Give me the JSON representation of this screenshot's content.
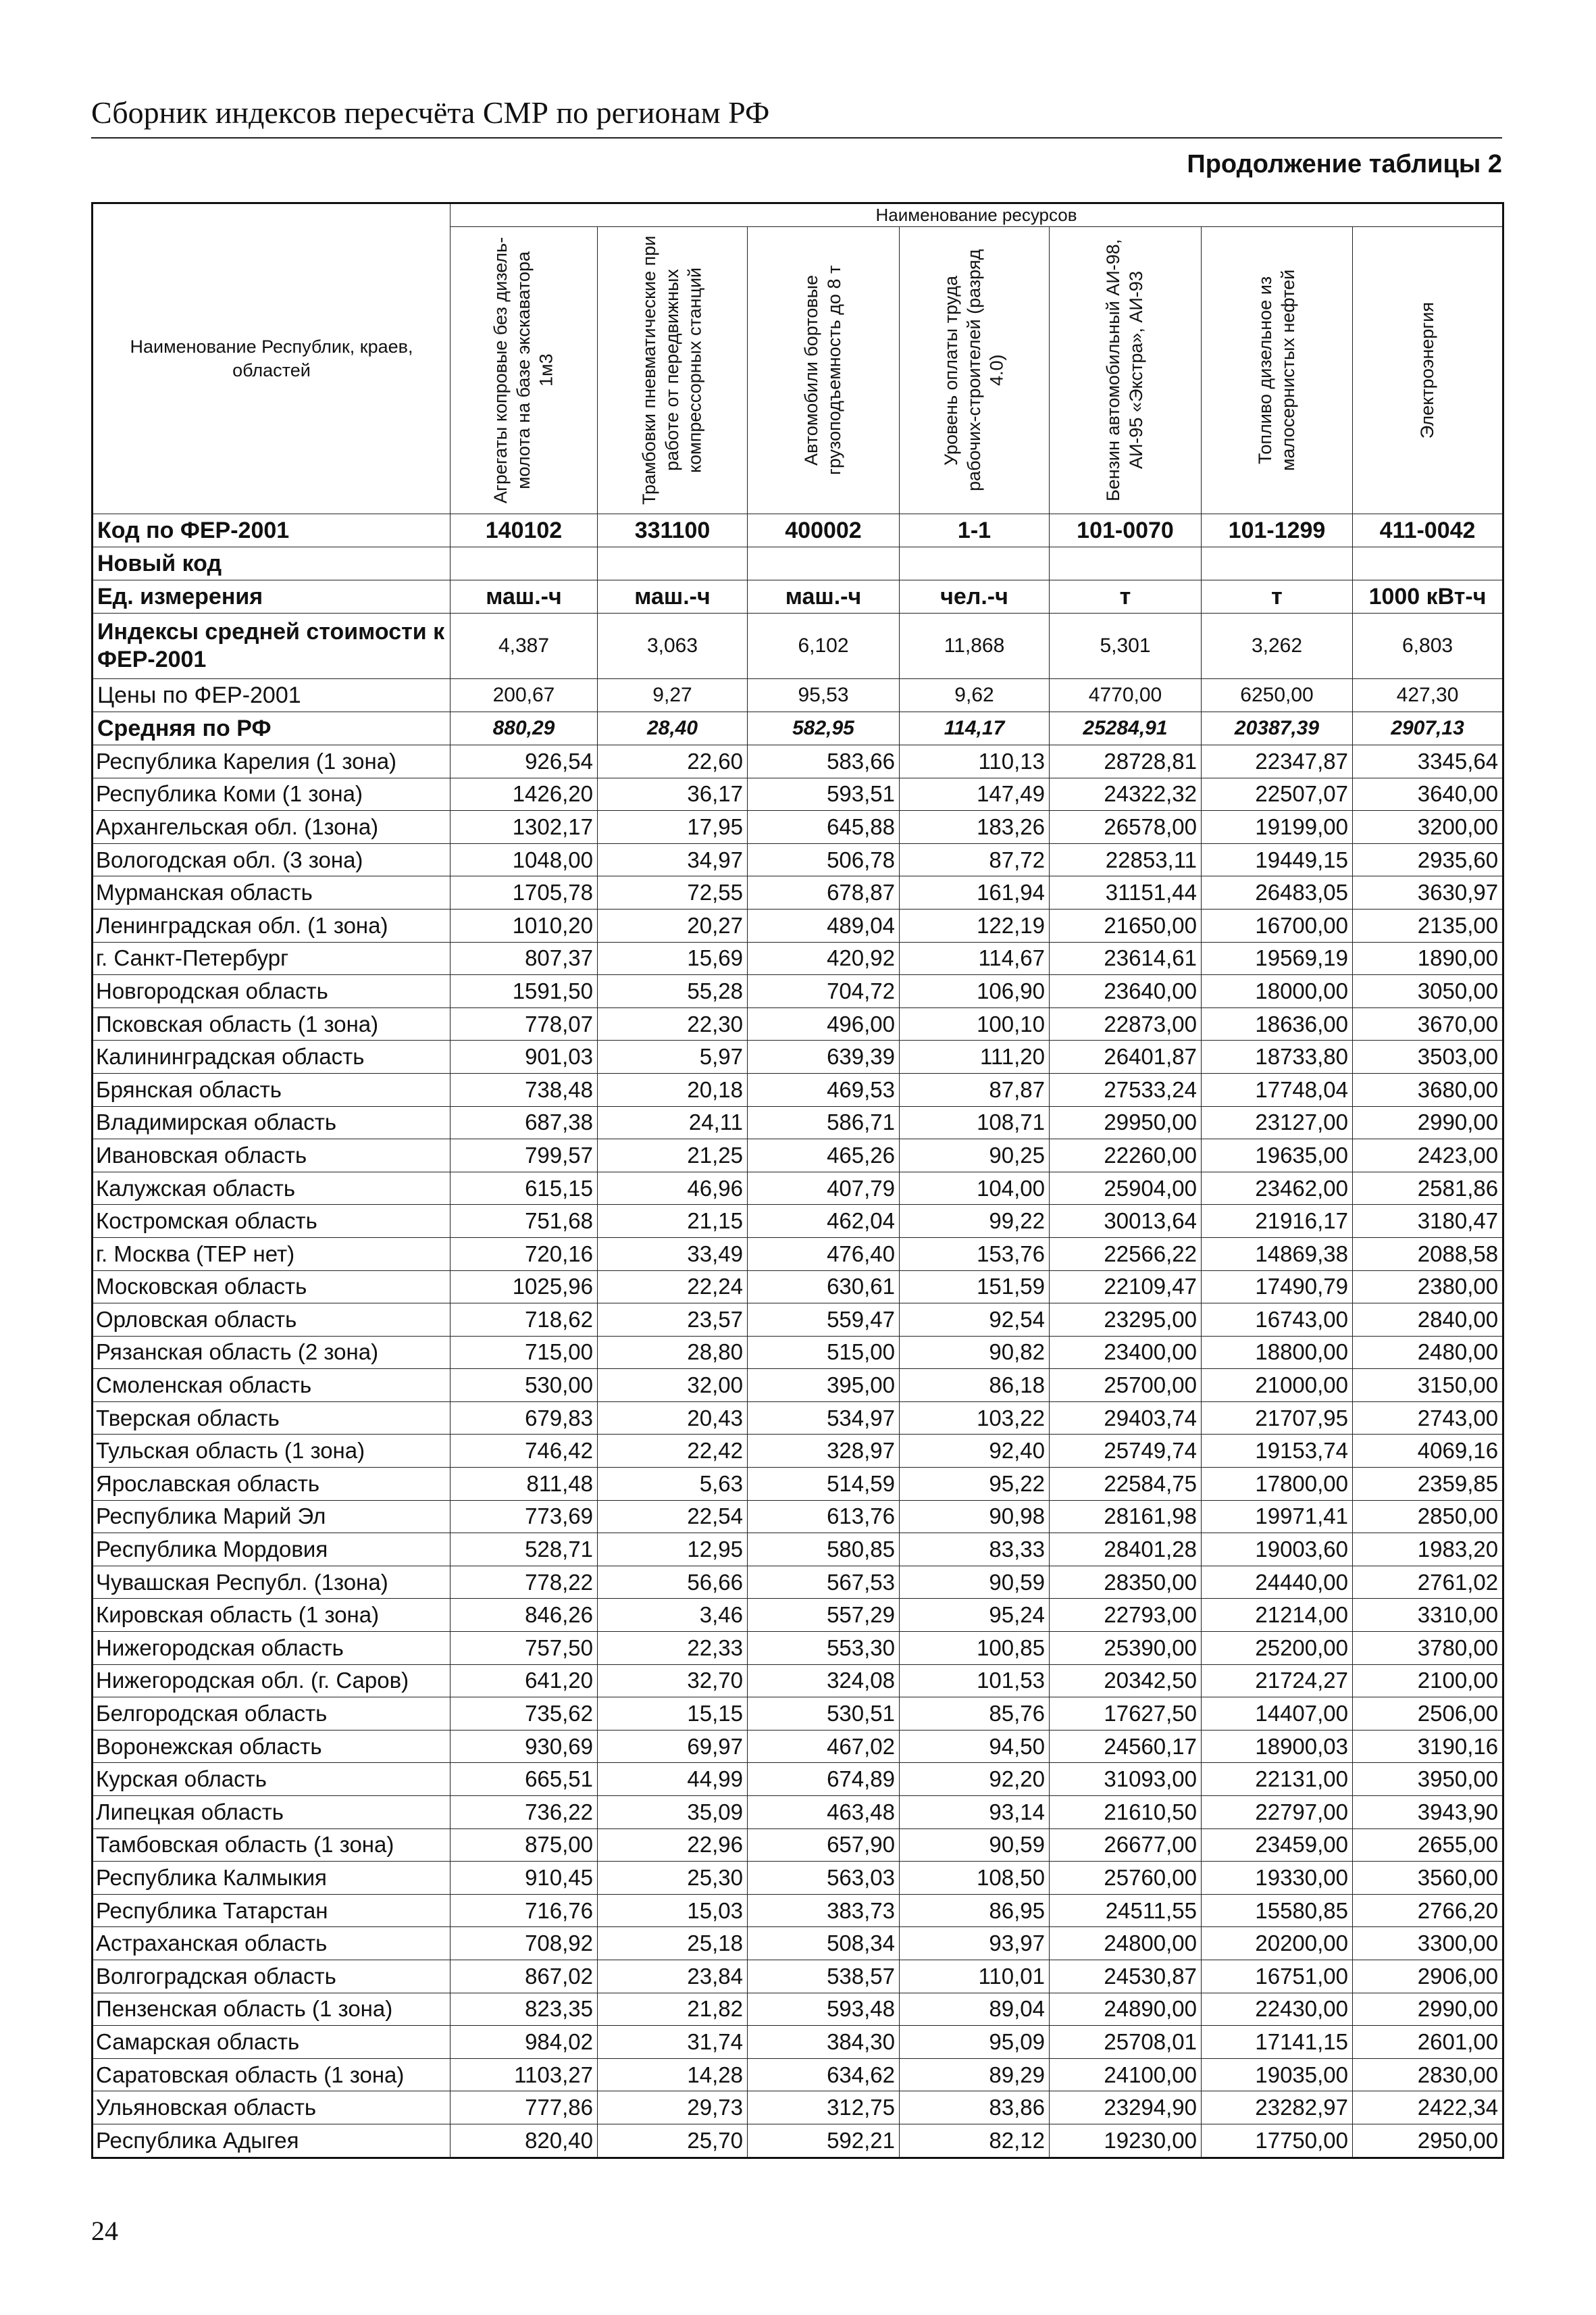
{
  "header": {
    "title": "Сборник индексов пересчёта СМР  по регионам РФ",
    "subtitle": "Продолжение таблицы 2"
  },
  "table": {
    "name_header": "Наименование Республик, краев, областей",
    "group_header": "Наименование ресурсов",
    "columns": [
      "Агрегаты копровые без дизель-молота на базе экскаватора 1м3",
      "Трамбовки пневматические при работе от передвижных компрессорных станций",
      "Автомобили бортовые грузоподъемность до 8 т",
      "Уровень оплаты труда рабочих-строителей (разряд 4.0)",
      "Бензин автомобильный АИ-98, АИ-95 «Экстра», АИ-93",
      "Топливо дизельное из малосернистых нефтей",
      "Электроэнергия"
    ],
    "special_rows": [
      {
        "label": "Код по ФЕР-2001",
        "cells": [
          "140102",
          "331100",
          "400002",
          "1-1",
          "101-0070",
          "101-1299",
          "411-0042"
        ]
      },
      {
        "label": "Новый код"
      },
      {
        "label": "Ед. измерения",
        "cells": [
          "маш.-ч",
          "маш.-ч",
          "маш.-ч",
          "чел.-ч",
          "т",
          "т",
          "1000 кВт-ч"
        ]
      },
      {
        "label": "Индексы средней стоимости к ФЕР-2001",
        "cells": [
          "4,387",
          "3,063",
          "6,102",
          "11,868",
          "5,301",
          "3,262",
          "6,803"
        ]
      },
      {
        "label": "Цены по ФЕР-2001",
        "cells": [
          "200,67",
          "9,27",
          "95,53",
          "9,62",
          "4770,00",
          "6250,00",
          "427,30"
        ]
      },
      {
        "label": "Средняя по РФ",
        "cells": [
          "880,29",
          "28,40",
          "582,95",
          "114,17",
          "25284,91",
          "20387,39",
          "2907,13"
        ]
      }
    ],
    "rows": [
      [
        "Республика Карелия (1 зона)",
        "926,54",
        "22,60",
        "583,66",
        "110,13",
        "28728,81",
        "22347,87",
        "3345,64"
      ],
      [
        "Республика Коми (1 зона)",
        "1426,20",
        "36,17",
        "593,51",
        "147,49",
        "24322,32",
        "22507,07",
        "3640,00"
      ],
      [
        "Архангельская обл. (1зона)",
        "1302,17",
        "17,95",
        "645,88",
        "183,26",
        "26578,00",
        "19199,00",
        "3200,00"
      ],
      [
        "Вологодская обл. (3 зона)",
        "1048,00",
        "34,97",
        "506,78",
        "87,72",
        "22853,11",
        "19449,15",
        "2935,60"
      ],
      [
        "Мурманская область",
        "1705,78",
        "72,55",
        "678,87",
        "161,94",
        "31151,44",
        "26483,05",
        "3630,97"
      ],
      [
        "Ленинградская обл. (1 зона)",
        "1010,20",
        "20,27",
        "489,04",
        "122,19",
        "21650,00",
        "16700,00",
        "2135,00"
      ],
      [
        "г. Санкт-Петербург",
        "807,37",
        "15,69",
        "420,92",
        "114,67",
        "23614,61",
        "19569,19",
        "1890,00"
      ],
      [
        "Новгородская область",
        "1591,50",
        "55,28",
        "704,72",
        "106,90",
        "23640,00",
        "18000,00",
        "3050,00"
      ],
      [
        "Псковская область (1 зона)",
        "778,07",
        "22,30",
        "496,00",
        "100,10",
        "22873,00",
        "18636,00",
        "3670,00"
      ],
      [
        "Калининградская область",
        "901,03",
        "5,97",
        "639,39",
        "111,20",
        "26401,87",
        "18733,80",
        "3503,00"
      ],
      [
        "Брянская область",
        "738,48",
        "20,18",
        "469,53",
        "87,87",
        "27533,24",
        "17748,04",
        "3680,00"
      ],
      [
        "Владимирская область",
        "687,38",
        "24,11",
        "586,71",
        "108,71",
        "29950,00",
        "23127,00",
        "2990,00"
      ],
      [
        "Ивановская область",
        "799,57",
        "21,25",
        "465,26",
        "90,25",
        "22260,00",
        "19635,00",
        "2423,00"
      ],
      [
        "Калужская область",
        "615,15",
        "46,96",
        "407,79",
        "104,00",
        "25904,00",
        "23462,00",
        "2581,86"
      ],
      [
        "Костромская область",
        "751,68",
        "21,15",
        "462,04",
        "99,22",
        "30013,64",
        "21916,17",
        "3180,47"
      ],
      [
        "г. Москва (ТЕР нет)",
        "720,16",
        "33,49",
        "476,40",
        "153,76",
        "22566,22",
        "14869,38",
        "2088,58"
      ],
      [
        "Московская  область",
        "1025,96",
        "22,24",
        "630,61",
        "151,59",
        "22109,47",
        "17490,79",
        "2380,00"
      ],
      [
        "Орловская область",
        "718,62",
        "23,57",
        "559,47",
        "92,54",
        "23295,00",
        "16743,00",
        "2840,00"
      ],
      [
        "Рязанская область (2 зона)",
        "715,00",
        "28,80",
        "515,00",
        "90,82",
        "23400,00",
        "18800,00",
        "2480,00"
      ],
      [
        "Смоленская область",
        "530,00",
        "32,00",
        "395,00",
        "86,18",
        "25700,00",
        "21000,00",
        "3150,00"
      ],
      [
        "Тверская область",
        "679,83",
        "20,43",
        "534,97",
        "103,22",
        "29403,74",
        "21707,95",
        "2743,00"
      ],
      [
        "Тульская область (1 зона)",
        "746,42",
        "22,42",
        "328,97",
        "92,40",
        "25749,74",
        "19153,74",
        "4069,16"
      ],
      [
        "Ярославская область",
        "811,48",
        "5,63",
        "514,59",
        "95,22",
        "22584,75",
        "17800,00",
        "2359,85"
      ],
      [
        "Республика Марий Эл",
        "773,69",
        "22,54",
        "613,76",
        "90,98",
        "28161,98",
        "19971,41",
        "2850,00"
      ],
      [
        "Республика Мордовия",
        "528,71",
        "12,95",
        "580,85",
        "83,33",
        "28401,28",
        "19003,60",
        "1983,20"
      ],
      [
        "Чувашская Республ. (1зона)",
        "778,22",
        "56,66",
        "567,53",
        "90,59",
        "28350,00",
        "24440,00",
        "2761,02"
      ],
      [
        "Кировская область (1 зона)",
        "846,26",
        "3,46",
        "557,29",
        "95,24",
        "22793,00",
        "21214,00",
        "3310,00"
      ],
      [
        "Нижегородская область",
        "757,50",
        "22,33",
        "553,30",
        "100,85",
        "25390,00",
        "25200,00",
        "3780,00"
      ],
      [
        "Нижегородская обл. (г. Саров)",
        "641,20",
        "32,70",
        "324,08",
        "101,53",
        "20342,50",
        "21724,27",
        "2100,00"
      ],
      [
        "Белгородская область",
        "735,62",
        "15,15",
        "530,51",
        "85,76",
        "17627,50",
        "14407,00",
        "2506,00"
      ],
      [
        "Воронежская область",
        "930,69",
        "69,97",
        "467,02",
        "94,50",
        "24560,17",
        "18900,03",
        "3190,16"
      ],
      [
        "Курская область",
        "665,51",
        "44,99",
        "674,89",
        "92,20",
        "31093,00",
        "22131,00",
        "3950,00"
      ],
      [
        "Липецкая область",
        "736,22",
        "35,09",
        "463,48",
        "93,14",
        "21610,50",
        "22797,00",
        "3943,90"
      ],
      [
        "Тамбовская область (1 зона)",
        "875,00",
        "22,96",
        "657,90",
        "90,59",
        "26677,00",
        "23459,00",
        "2655,00"
      ],
      [
        "Республика Калмыкия",
        "910,45",
        "25,30",
        "563,03",
        "108,50",
        "25760,00",
        "19330,00",
        "3560,00"
      ],
      [
        "Республика Татарстан",
        "716,76",
        "15,03",
        "383,73",
        "86,95",
        "24511,55",
        "15580,85",
        "2766,20"
      ],
      [
        "Астраханская область",
        "708,92",
        "25,18",
        "508,34",
        "93,97",
        "24800,00",
        "20200,00",
        "3300,00"
      ],
      [
        "Волгоградская область",
        "867,02",
        "23,84",
        "538,57",
        "110,01",
        "24530,87",
        "16751,00",
        "2906,00"
      ],
      [
        "Пензенская область (1 зона)",
        "823,35",
        "21,82",
        "593,48",
        "89,04",
        "24890,00",
        "22430,00",
        "2990,00"
      ],
      [
        "Самарская область",
        "984,02",
        "31,74",
        "384,30",
        "95,09",
        "25708,01",
        "17141,15",
        "2601,00"
      ],
      [
        "Саратовская область (1 зона)",
        "1103,27",
        "14,28",
        "634,62",
        "89,29",
        "24100,00",
        "19035,00",
        "2830,00"
      ],
      [
        "Ульяновская область",
        "777,86",
        "29,73",
        "312,75",
        "83,86",
        "23294,90",
        "23282,97",
        "2422,34"
      ],
      [
        "Республика Адыгея",
        "820,40",
        "25,70",
        "592,21",
        "82,12",
        "19230,00",
        "17750,00",
        "2950,00"
      ]
    ]
  },
  "footer": {
    "page_number": "24"
  }
}
